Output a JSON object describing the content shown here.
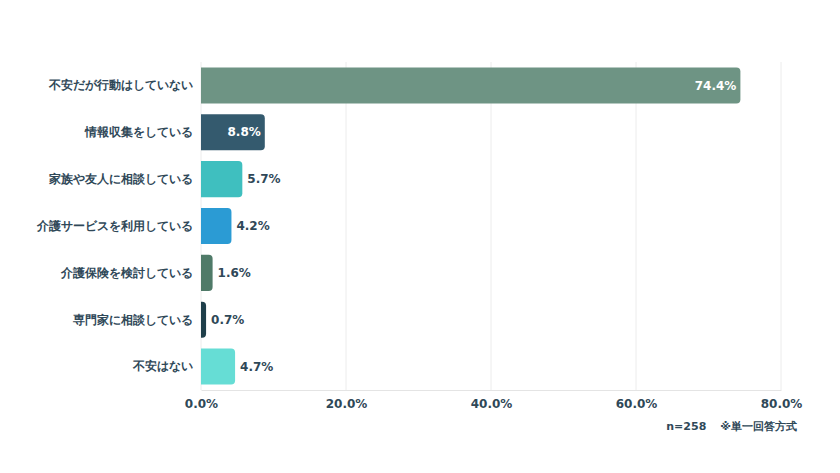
{
  "chart_data": {
    "type": "bar",
    "orientation": "horizontal",
    "categories": [
      "不安だが行動はしていない",
      "情報収集をしている",
      "家族や友人に相談している",
      "介護サービスを利用している",
      "介護保険を検討している",
      "専門家に相談している",
      "不安はない"
    ],
    "values": [
      74.4,
      8.8,
      5.7,
      4.2,
      1.6,
      0.7,
      4.7
    ],
    "value_labels": [
      "74.4%",
      "8.8%",
      "5.7%",
      "4.2%",
      "1.6%",
      "0.7%",
      "4.7%"
    ],
    "colors": [
      "#6e9484",
      "#345a6e",
      "#3fbfbf",
      "#2b9bd4",
      "#4f7a68",
      "#1f3f4a",
      "#66ddd5"
    ],
    "xlim": [
      0,
      80
    ],
    "xticks": [
      {
        "value": 0,
        "label": "0.0%"
      },
      {
        "value": 20,
        "label": "20.0%"
      },
      {
        "value": 40,
        "label": "40.0%"
      },
      {
        "value": 60,
        "label": "60.0%"
      },
      {
        "value": 80,
        "label": "80.0%"
      }
    ],
    "grid": true,
    "data_labels": true,
    "annotations": [
      "n=258",
      "※単一回答方式"
    ]
  }
}
